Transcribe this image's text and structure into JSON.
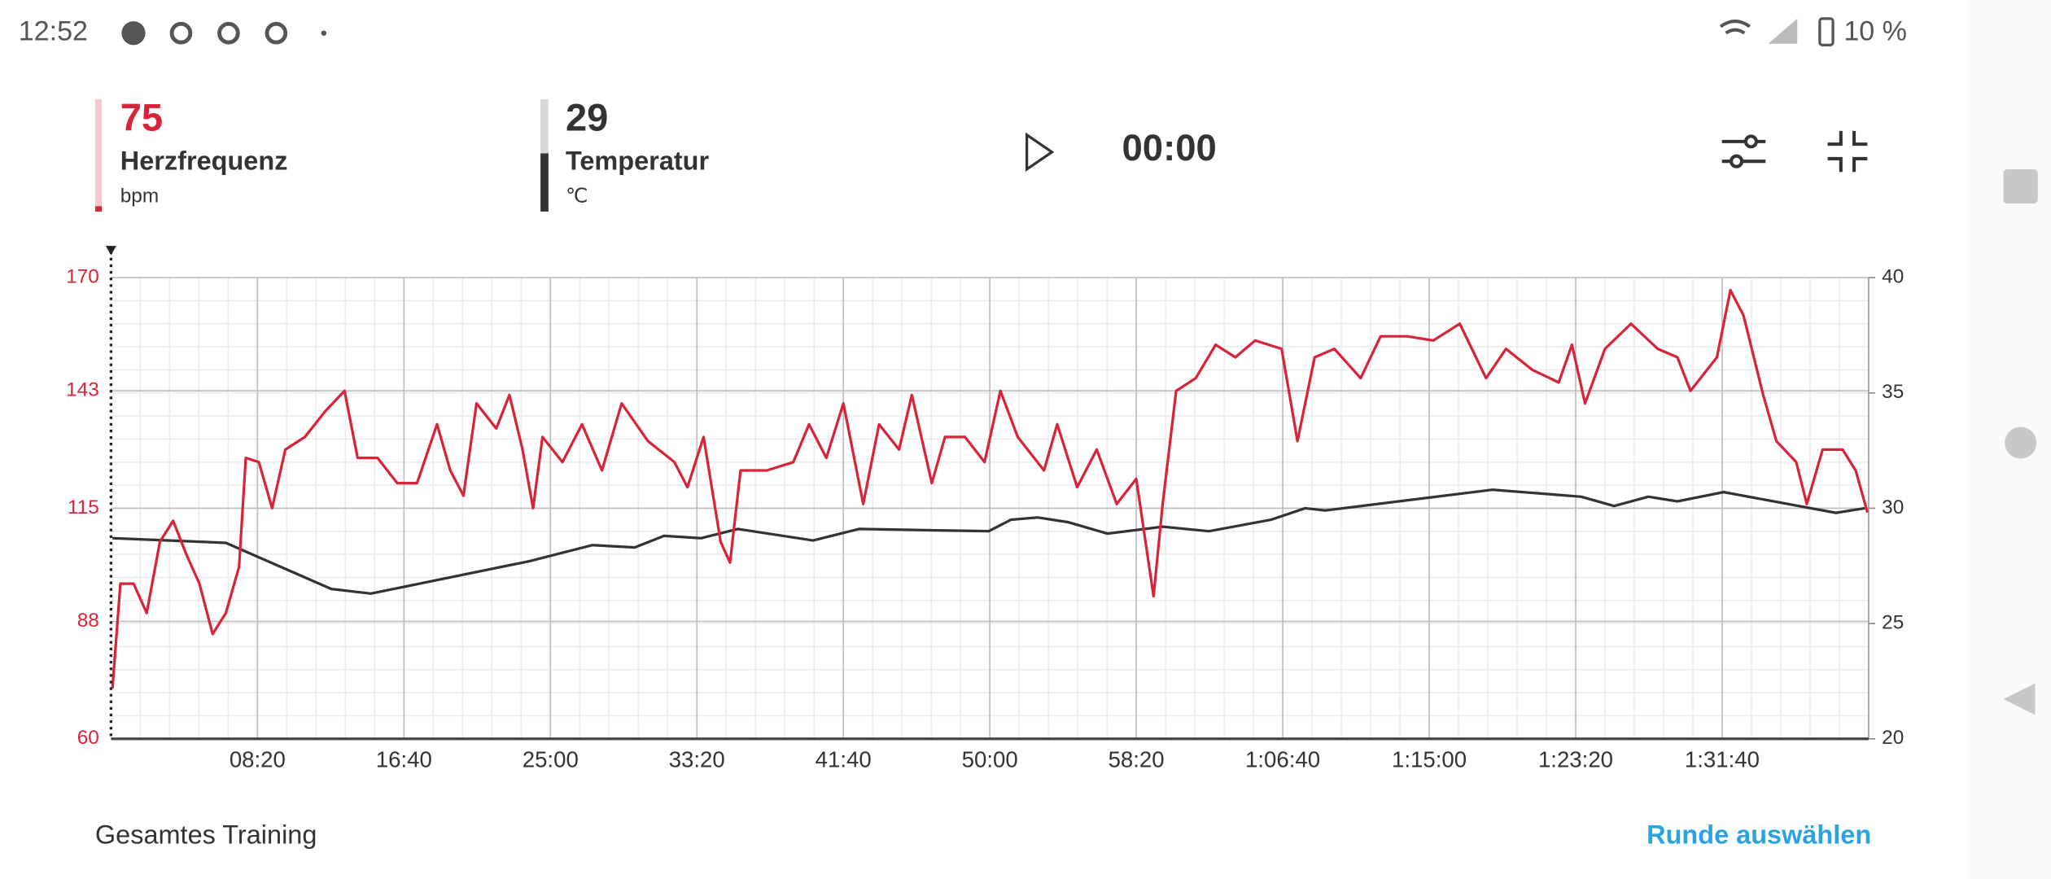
{
  "status_bar": {
    "time": "12:52",
    "battery": "10 %"
  },
  "header": {
    "metrics": [
      {
        "value": "75",
        "label": "Herzfrequenz",
        "unit": "bpm"
      },
      {
        "value": "29",
        "label": "Temperatur",
        "unit": "℃"
      }
    ],
    "timer": "00:00"
  },
  "footer": {
    "left": "Gesamtes Training",
    "right": "Runde auswählen"
  },
  "chart_data": {
    "type": "line",
    "xlim": [
      0,
      6000
    ],
    "xticks": [
      {
        "value": 500,
        "label": "08:20"
      },
      {
        "value": 1000,
        "label": "16:40"
      },
      {
        "value": 1500,
        "label": "25:00"
      },
      {
        "value": 2000,
        "label": "33:20"
      },
      {
        "value": 2500,
        "label": "41:40"
      },
      {
        "value": 3000,
        "label": "50:00"
      },
      {
        "value": 3500,
        "label": "58:20"
      },
      {
        "value": 4000,
        "label": "1:06:40"
      },
      {
        "value": 4500,
        "label": "1:15:00"
      },
      {
        "value": 5000,
        "label": "1:23:20"
      },
      {
        "value": 5500,
        "label": "1:31:40"
      }
    ],
    "ylim": [
      60,
      170
    ],
    "yticks": [
      60,
      88,
      115,
      143,
      170
    ],
    "y2lim": [
      20,
      40
    ],
    "y2ticks": [
      20,
      25,
      30,
      35,
      40
    ],
    "grid": true,
    "series": [
      {
        "color": "#d8243a",
        "axis": "y",
        "x": [
          5,
          32,
          77,
          122,
          167,
          212,
          257,
          302,
          347,
          392,
          437,
          460,
          505,
          550,
          595,
          662,
          730,
          797,
          842,
          910,
          977,
          1045,
          1113,
          1158,
          1203,
          1248,
          1315,
          1360,
          1405,
          1441,
          1473,
          1541,
          1608,
          1676,
          1743,
          1833,
          1923,
          1968,
          2023,
          2081,
          2113,
          2149,
          2239,
          2329,
          2383,
          2442,
          2500,
          2568,
          2622,
          2690,
          2734,
          2802,
          2847,
          2915,
          2982,
          3036,
          3095,
          3185,
          3230,
          3298,
          3365,
          3433,
          3500,
          3559,
          3590,
          3636,
          3703,
          3771,
          3838,
          3906,
          3996,
          4050,
          4109,
          4176,
          4266,
          4334,
          4424,
          4514,
          4604,
          4694,
          4762,
          4852,
          4942,
          4987,
          5032,
          5100,
          5189,
          5280,
          5347,
          5392,
          5482,
          5528,
          5573,
          5640,
          5685,
          5753,
          5789,
          5843,
          5911,
          5956,
          5996
        ],
        "values": [
          72,
          97,
          97,
          90,
          107,
          112,
          104,
          97,
          85,
          90,
          101,
          127,
          126,
          115,
          129,
          132,
          138,
          143,
          127,
          127,
          121,
          121,
          135,
          124,
          118,
          140,
          134,
          142,
          129,
          115,
          132,
          126,
          135,
          124,
          140,
          131,
          126,
          120,
          132,
          107,
          102,
          124,
          124,
          126,
          135,
          127,
          140,
          116,
          135,
          129,
          142,
          121,
          132,
          132,
          126,
          143,
          132,
          124,
          135,
          120,
          129,
          116,
          122,
          94,
          116,
          143,
          146,
          154,
          151,
          155,
          153,
          131,
          151,
          153,
          146,
          156,
          156,
          155,
          159,
          146,
          153,
          148,
          145,
          154,
          140,
          153,
          159,
          153,
          151,
          143,
          151,
          167,
          161,
          142,
          131,
          126,
          116,
          129,
          129,
          124,
          114
        ]
      },
      {
        "color": "#333333",
        "axis": "y2",
        "x": [
          5,
          392,
          752,
          887,
          1428,
          1644,
          1788,
          1888,
          2014,
          2140,
          2397,
          2554,
          2996,
          3072,
          3163,
          3266,
          3401,
          3590,
          3748,
          3960,
          4077,
          4145,
          4717,
          5019,
          5131,
          5248,
          5347,
          5505,
          5888,
          5987
        ],
        "values": [
          28.7,
          28.5,
          26.5,
          26.3,
          27.7,
          28.4,
          28.3,
          28.8,
          28.7,
          29.1,
          28.6,
          29.1,
          29.0,
          29.5,
          29.6,
          29.4,
          28.9,
          29.2,
          29.0,
          29.5,
          30.0,
          29.9,
          30.8,
          30.5,
          30.1,
          30.5,
          30.3,
          30.7,
          29.8,
          30.0
        ]
      }
    ]
  }
}
